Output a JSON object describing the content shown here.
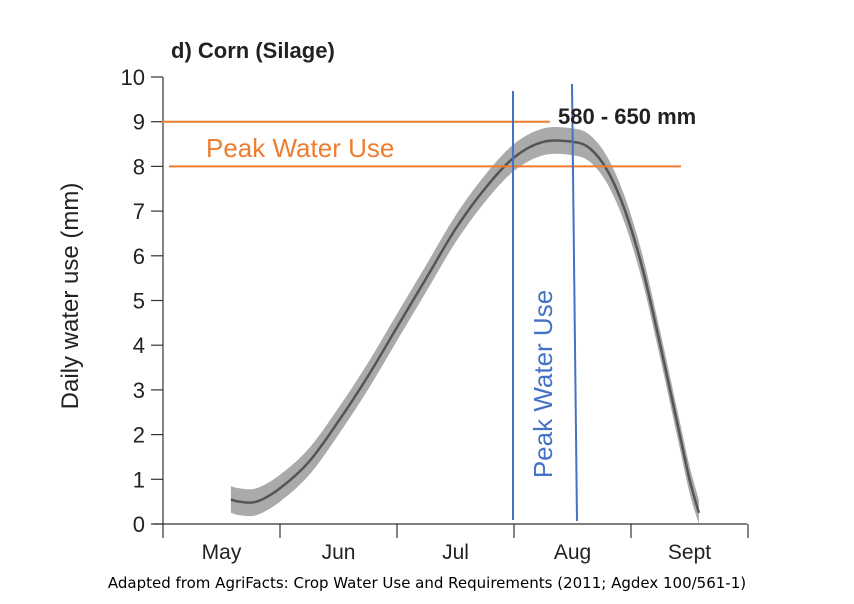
{
  "chart_data": {
    "type": "line",
    "title": "d) Corn (Silage)",
    "ylabel": "Daily water use (mm)",
    "xlabel": "",
    "ylim": [
      0,
      10
    ],
    "yticks": [
      0,
      1,
      2,
      3,
      4,
      5,
      6,
      7,
      8,
      9,
      10
    ],
    "months": [
      "May",
      "Jun",
      "Jul",
      "Aug",
      "Sept"
    ],
    "series": [
      {
        "x": [
          0.58,
          0.65,
          0.8,
          1.0,
          1.25,
          1.5,
          1.75,
          2.0,
          2.25,
          2.5,
          2.75,
          3.0,
          3.25,
          3.5,
          3.65,
          3.8,
          3.95,
          4.1,
          4.25,
          4.4,
          4.5,
          4.58
        ],
        "y": [
          0.55,
          0.5,
          0.5,
          0.8,
          1.4,
          2.3,
          3.3,
          4.4,
          5.5,
          6.6,
          7.5,
          8.2,
          8.55,
          8.55,
          8.4,
          7.9,
          7.0,
          5.7,
          4.0,
          2.2,
          1.0,
          0.25
        ],
        "band": 0.3,
        "color": "#555555",
        "band_color": "#aaaaaa"
      }
    ],
    "annotations": {
      "horizontal_label": "Peak Water Use",
      "vertical_label": "Peak Water Use",
      "range_label": "580 - 650 mm",
      "horizontal_color": "#ed7d31",
      "vertical_color": "#4472c4",
      "horizontal_lines": [
        9.0,
        8.0
      ]
    },
    "caption": "Adapted from AgriFacts: Crop Water Use and Requirements (2011; Agdex 100/561-1)"
  }
}
